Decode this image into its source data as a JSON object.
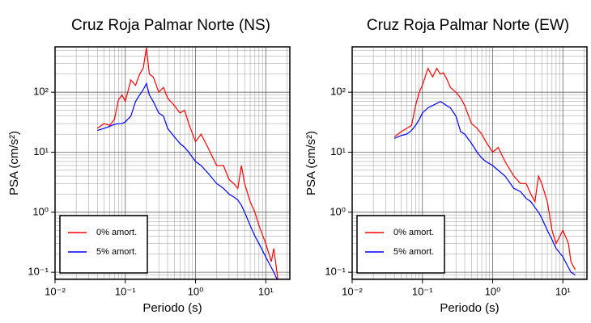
{
  "chart_data": [
    {
      "type": "line",
      "title": "Cruz Roja Palmar Norte (NS)",
      "x_label": "Periodo (s)",
      "y_label": "PSA (cm/s²)",
      "log_x": true,
      "log_y": true,
      "grid": true,
      "legend": "lower left",
      "xlim": [
        0.01,
        22
      ],
      "ylim": [
        0.076,
        570
      ],
      "xticks": [
        {
          "value": 0.01,
          "label": "10⁻²"
        },
        {
          "value": 0.1,
          "label": "10⁻¹"
        },
        {
          "value": 1,
          "label": "10⁰"
        },
        {
          "value": 10,
          "label": "10¹"
        }
      ],
      "yticks": [
        {
          "value": 0.1,
          "label": "10⁻¹"
        },
        {
          "value": 1,
          "label": "10⁰"
        },
        {
          "value": 10,
          "label": "10¹"
        },
        {
          "value": 100,
          "label": "10²"
        }
      ],
      "x": [
        0.04,
        0.05,
        0.06,
        0.07,
        0.08,
        0.09,
        0.1,
        0.12,
        0.14,
        0.16,
        0.18,
        0.2,
        0.22,
        0.25,
        0.3,
        0.35,
        0.4,
        0.5,
        0.6,
        0.7,
        0.8,
        1,
        1.2,
        1.5,
        2,
        2.5,
        3,
        3.5,
        4,
        4.5,
        5,
        6,
        7,
        8,
        10,
        12,
        13,
        15
      ],
      "series": [
        {
          "name": "0% amort.",
          "color": "#ff0000",
          "values": [
            25,
            30,
            28,
            35,
            75,
            90,
            70,
            160,
            130,
            200,
            250,
            550,
            200,
            180,
            100,
            120,
            80,
            60,
            45,
            50,
            30,
            15,
            20,
            12,
            6,
            6,
            3.5,
            3,
            2.5,
            6,
            3,
            1.5,
            1,
            0.6,
            0.3,
            0.15,
            0.25,
            0.07
          ]
        },
        {
          "name": "5% amort.",
          "color": "#0000ff",
          "values": [
            23,
            25,
            27,
            29,
            30,
            30,
            32,
            40,
            70,
            90,
            110,
            140,
            90,
            70,
            45,
            40,
            25,
            18,
            14,
            12,
            10,
            7,
            6,
            4.5,
            3,
            2.5,
            2,
            1.8,
            1.6,
            1.3,
            1,
            0.6,
            0.4,
            0.3,
            0.18,
            0.12,
            0.1,
            0.07
          ]
        }
      ]
    },
    {
      "type": "line",
      "title": "Cruz Roja Palmar Norte (EW)",
      "x_label": "Periodo (s)",
      "y_label": "PSA (cm/s²)",
      "log_x": true,
      "log_y": true,
      "grid": true,
      "legend": "lower left",
      "xlim": [
        0.01,
        22
      ],
      "ylim": [
        0.076,
        570
      ],
      "xticks": [
        {
          "value": 0.01,
          "label": "10⁻²"
        },
        {
          "value": 0.1,
          "label": "10⁻¹"
        },
        {
          "value": 1,
          "label": "10⁰"
        },
        {
          "value": 10,
          "label": "10¹"
        }
      ],
      "yticks": [
        {
          "value": 0.1,
          "label": "10⁻¹"
        },
        {
          "value": 1,
          "label": "10⁰"
        },
        {
          "value": 10,
          "label": "10¹"
        },
        {
          "value": 100,
          "label": "10²"
        }
      ],
      "x": [
        0.04,
        0.05,
        0.06,
        0.07,
        0.08,
        0.09,
        0.1,
        0.12,
        0.14,
        0.16,
        0.18,
        0.2,
        0.22,
        0.25,
        0.3,
        0.35,
        0.4,
        0.5,
        0.6,
        0.7,
        0.8,
        1,
        1.2,
        1.5,
        2,
        2.5,
        3,
        3.5,
        4,
        4.5,
        5,
        6,
        7,
        8,
        10,
        12,
        13,
        15
      ],
      "series": [
        {
          "name": "0% amort.",
          "color": "#ff0000",
          "values": [
            18,
            22,
            25,
            28,
            60,
            100,
            130,
            250,
            180,
            250,
            200,
            210,
            170,
            120,
            100,
            80,
            60,
            30,
            25,
            20,
            15,
            10,
            12,
            7,
            4,
            3,
            3,
            2,
            1.5,
            4,
            3,
            1.5,
            0.5,
            0.3,
            0.5,
            0.3,
            0.15,
            0.11
          ]
        },
        {
          "name": "5% amort.",
          "color": "#0000ff",
          "values": [
            17,
            19,
            20,
            23,
            28,
            35,
            45,
            55,
            60,
            65,
            70,
            65,
            60,
            55,
            40,
            22,
            20,
            14,
            10,
            8,
            7,
            6,
            5,
            4,
            2.5,
            2.2,
            1.7,
            1.5,
            1.2,
            1,
            0.8,
            0.5,
            0.35,
            0.25,
            0.18,
            0.12,
            0.1,
            0.09
          ]
        }
      ]
    }
  ]
}
